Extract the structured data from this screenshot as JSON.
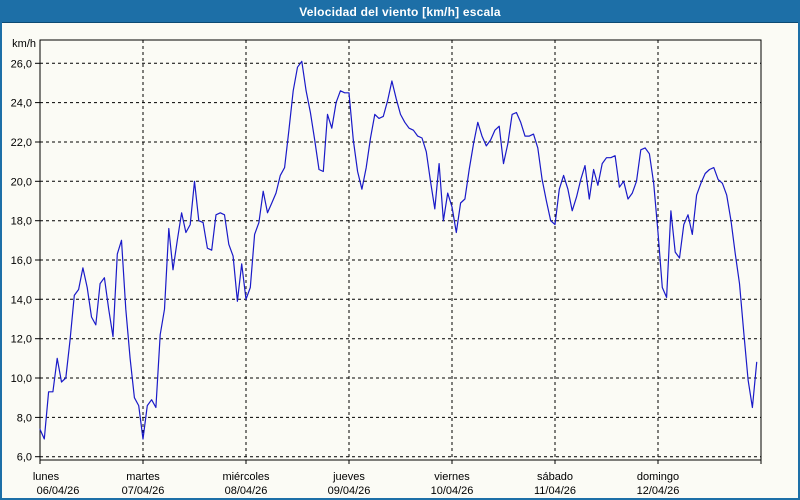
{
  "window": {
    "title": "Velocidad del viento [km/h] escala"
  },
  "colors": {
    "frame_blue": "#1d6fa7",
    "frame_blue_dark": "#0d4a73",
    "background": "#fbfbf5",
    "line_blue": "#1a1ac8",
    "grid_black": "#000000",
    "text_black": "#000000",
    "title_text": "#ffffff"
  },
  "y_axis": {
    "unit_label": "km/h",
    "tick_labels": [
      "26,0",
      "24,0",
      "22,0",
      "20,0",
      "18,0",
      "16,0",
      "14,0",
      "12,0",
      "10,0",
      "8,0",
      "6,0"
    ]
  },
  "chart_data": {
    "type": "line",
    "title": "Velocidad del viento [km/h] escala",
    "xlabel": "",
    "ylabel": "km/h",
    "ylim": [
      6,
      26
    ],
    "y_tick_step": 2,
    "grid": true,
    "legend_position": "none",
    "points_per_day": 24,
    "days": [
      {
        "name": "lunes",
        "date": "06/04/26",
        "values": [
          7.4,
          6.9,
          9.3,
          9.3,
          11.0,
          9.8,
          10.0,
          11.9,
          14.2,
          14.5,
          15.6,
          14.6,
          13.1,
          12.7,
          14.8,
          15.1,
          13.5,
          12.1,
          16.3,
          17.0,
          13.5,
          11.0,
          9.0,
          8.6
        ]
      },
      {
        "name": "martes",
        "date": "07/04/26",
        "values": [
          6.9,
          8.6,
          8.9,
          8.5,
          12.2,
          13.5,
          17.6,
          15.5,
          17.0,
          18.4,
          17.4,
          17.8,
          20.0,
          18.0,
          17.9,
          16.6,
          16.5,
          18.3,
          18.4,
          18.3,
          16.8,
          16.2,
          13.9,
          15.8
        ]
      },
      {
        "name": "miércoles",
        "date": "08/04/26",
        "values": [
          14.0,
          14.6,
          17.3,
          17.9,
          19.5,
          18.4,
          18.9,
          19.4,
          20.3,
          20.7,
          22.6,
          24.6,
          25.8,
          26.1,
          24.6,
          23.5,
          22.1,
          20.6,
          20.5,
          23.4,
          22.7,
          24.0,
          24.6,
          24.5
        ]
      },
      {
        "name": "jueves",
        "date": "09/04/26",
        "values": [
          24.5,
          22.1,
          20.5,
          19.6,
          20.7,
          22.2,
          23.4,
          23.2,
          23.3,
          24.1,
          25.1,
          24.2,
          23.4,
          23.0,
          22.7,
          22.6,
          22.3,
          22.2,
          21.5,
          20.0,
          18.6,
          20.9,
          18.0,
          19.4
        ]
      },
      {
        "name": "viernes",
        "date": "10/04/26",
        "values": [
          18.7,
          17.4,
          18.9,
          19.1,
          20.6,
          21.9,
          23.0,
          22.3,
          21.8,
          22.1,
          22.6,
          22.8,
          20.9,
          21.9,
          23.4,
          23.5,
          23.0,
          22.3,
          22.3,
          22.4,
          21.7,
          20.1,
          19.0,
          18.0
        ]
      },
      {
        "name": "sábado",
        "date": "11/04/26",
        "values": [
          17.8,
          19.6,
          20.3,
          19.6,
          18.5,
          19.2,
          20.1,
          20.8,
          19.1,
          20.6,
          19.8,
          20.9,
          21.2,
          21.2,
          21.3,
          19.7,
          20.0,
          19.1,
          19.4,
          20.0,
          21.6,
          21.7,
          21.4,
          19.9
        ]
      },
      {
        "name": "domingo",
        "date": "12/04/26",
        "values": [
          17.4,
          14.6,
          14.1,
          18.5,
          16.4,
          16.1,
          17.8,
          18.3,
          17.3,
          19.3,
          19.9,
          20.4,
          20.6,
          20.7,
          20.1,
          19.9,
          19.3,
          18.0,
          16.3,
          14.8,
          12.3,
          9.9,
          8.5,
          10.8
        ]
      }
    ]
  }
}
